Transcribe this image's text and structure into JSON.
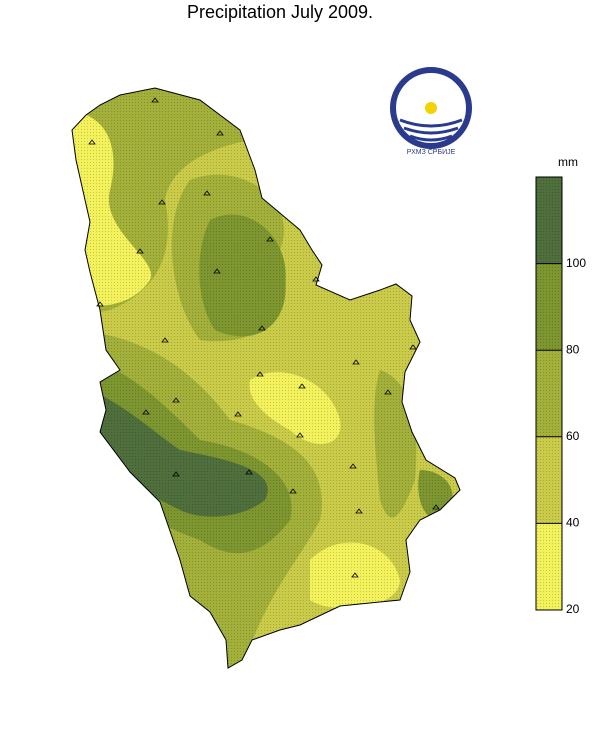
{
  "title": "Precipitation July 2009.",
  "logo_text": "РХМЗ СРБИЈЕ",
  "legend": {
    "unit": "mm",
    "range": [
      20,
      120
    ],
    "ticks": [
      20,
      40,
      60,
      80,
      100
    ],
    "colors": [
      "#f4f25c",
      "#c9cb49",
      "#a3b03a",
      "#7d9630",
      "#4f6f3c"
    ]
  }
}
